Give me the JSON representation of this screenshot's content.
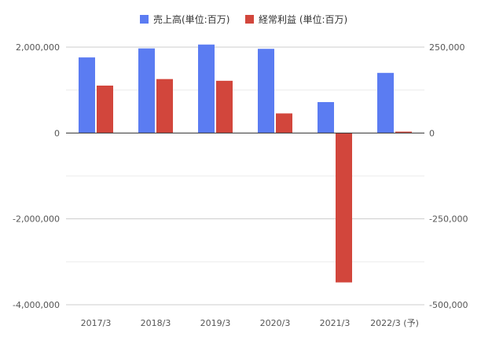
{
  "chart_data": {
    "type": "bar",
    "categories": [
      "2017/3",
      "2018/3",
      "2019/3",
      "2020/3",
      "2021/3",
      "2022/3 (予)"
    ],
    "series": [
      {
        "name": "売上高(単位:百万)",
        "axis": "left",
        "color": "#5b7cf2",
        "values": [
          1760000,
          1970000,
          2060000,
          1960000,
          720000,
          1400000
        ]
      },
      {
        "name": "経常利益 (単位:百万)",
        "axis": "right",
        "color": "#d2463c",
        "values": [
          138000,
          157000,
          152000,
          57000,
          -435000,
          4000
        ]
      }
    ],
    "y_left": {
      "ylim": [
        -4000000,
        2000000
      ],
      "ticks": [
        2000000,
        0,
        -2000000,
        -4000000
      ],
      "tick_labels": [
        "2,000,000",
        "0",
        "-2,000,000",
        "-4,000,000"
      ]
    },
    "y_right": {
      "ylim": [
        -500000,
        250000
      ],
      "ticks": [
        250000,
        0,
        -250000,
        -500000
      ],
      "tick_labels": [
        "250,000",
        "0",
        "-250,000",
        "-500,000"
      ]
    },
    "legend_position": "top-center",
    "grid": true
  }
}
